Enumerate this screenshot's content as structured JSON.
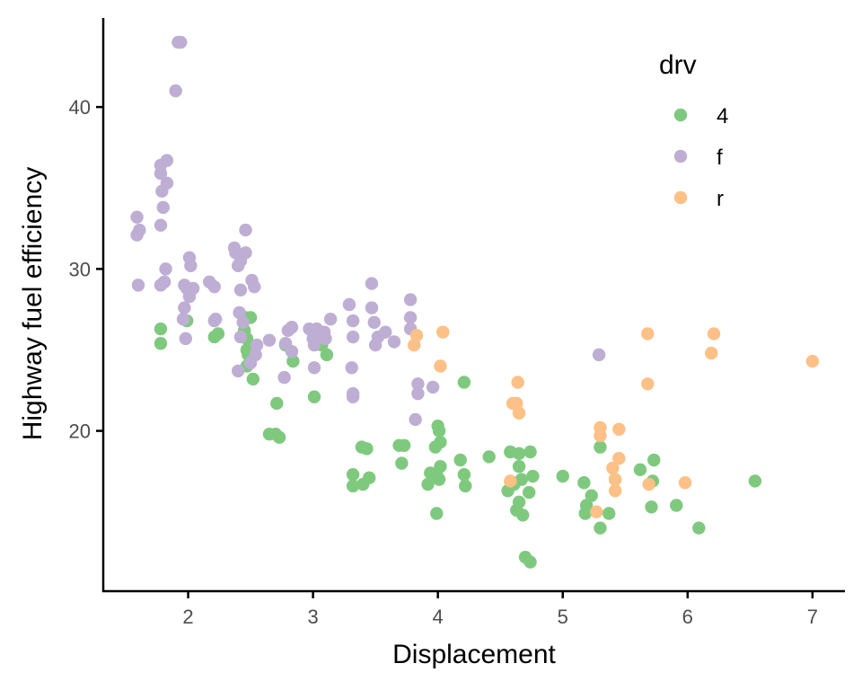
{
  "chart_data": {
    "type": "scatter",
    "title": "",
    "xlabel": "Displacement",
    "ylabel": "Highway fuel efficiency",
    "xlim": [
      1.32,
      7.26
    ],
    "ylim": [
      10.1,
      45.5
    ],
    "x_ticks": [
      2,
      3,
      4,
      5,
      6,
      7
    ],
    "x_tick_labels": [
      "2",
      "3",
      "4",
      "5",
      "6",
      "7"
    ],
    "y_ticks": [
      20,
      30,
      40
    ],
    "y_tick_labels": [
      "20",
      "30",
      "40"
    ],
    "grid": false,
    "legend": {
      "title": "drv",
      "placement": "top-right",
      "entries": [
        "4",
        "f",
        "r"
      ]
    },
    "series": [
      {
        "name": "4",
        "color": "#7fc97f",
        "points": [
          [
            1.78,
            26.3
          ],
          [
            1.78,
            25.4
          ],
          [
            1.99,
            26.8
          ],
          [
            2.21,
            25.8
          ],
          [
            2.24,
            26.0
          ],
          [
            2.46,
            27.0
          ],
          [
            2.5,
            27.0
          ],
          [
            2.45,
            26.2
          ],
          [
            2.47,
            25.7
          ],
          [
            2.47,
            25.0
          ],
          [
            2.48,
            24.7
          ],
          [
            2.47,
            24.0
          ],
          [
            2.52,
            23.2
          ],
          [
            2.71,
            21.7
          ],
          [
            2.65,
            19.8
          ],
          [
            2.7,
            19.8
          ],
          [
            2.73,
            19.6
          ],
          [
            2.78,
            25.3
          ],
          [
            2.84,
            24.3
          ],
          [
            3.01,
            22.1
          ],
          [
            3.07,
            25.3
          ],
          [
            3.11,
            24.7
          ],
          [
            3.39,
            19.0
          ],
          [
            3.43,
            18.9
          ],
          [
            3.32,
            17.3
          ],
          [
            3.32,
            16.6
          ],
          [
            3.4,
            16.7
          ],
          [
            3.45,
            17.1
          ],
          [
            3.69,
            19.1
          ],
          [
            3.73,
            19.1
          ],
          [
            3.71,
            18.0
          ],
          [
            4.0,
            20.3
          ],
          [
            4.01,
            20.0
          ],
          [
            4.02,
            19.3
          ],
          [
            3.98,
            19.0
          ],
          [
            3.92,
            16.7
          ],
          [
            3.94,
            17.4
          ],
          [
            3.99,
            17.3
          ],
          [
            4.02,
            17.8
          ],
          [
            4.01,
            17.0
          ],
          [
            3.99,
            14.9
          ],
          [
            4.18,
            18.2
          ],
          [
            4.21,
            17.3
          ],
          [
            4.22,
            16.6
          ],
          [
            4.21,
            23.0
          ],
          [
            4.41,
            18.4
          ],
          [
            4.58,
            18.7
          ],
          [
            4.65,
            18.6
          ],
          [
            4.74,
            18.7
          ],
          [
            4.56,
            16.3
          ],
          [
            4.6,
            16.8
          ],
          [
            4.67,
            17.0
          ],
          [
            4.76,
            17.2
          ],
          [
            4.65,
            17.8
          ],
          [
            4.73,
            16.2
          ],
          [
            4.65,
            15.6
          ],
          [
            4.63,
            15.1
          ],
          [
            4.68,
            14.8
          ],
          [
            4.61,
            16.7
          ],
          [
            4.7,
            12.2
          ],
          [
            4.74,
            11.9
          ],
          [
            5.0,
            17.2
          ],
          [
            5.17,
            16.8
          ],
          [
            5.23,
            16.0
          ],
          [
            5.19,
            15.4
          ],
          [
            5.18,
            14.9
          ],
          [
            5.37,
            14.9
          ],
          [
            5.3,
            19.0
          ],
          [
            5.3,
            14.0
          ],
          [
            5.42,
            17.0
          ],
          [
            5.62,
            17.6
          ],
          [
            5.73,
            18.2
          ],
          [
            5.71,
            15.3
          ],
          [
            5.72,
            16.9
          ],
          [
            5.91,
            15.4
          ],
          [
            6.09,
            14.0
          ],
          [
            6.54,
            16.9
          ]
        ]
      },
      {
        "name": "f",
        "color": "#beaed4",
        "points": [
          [
            1.92,
            44.0
          ],
          [
            1.94,
            44.0
          ],
          [
            1.9,
            41.0
          ],
          [
            1.83,
            36.7
          ],
          [
            1.78,
            36.4
          ],
          [
            1.78,
            35.9
          ],
          [
            1.83,
            35.3
          ],
          [
            1.79,
            34.8
          ],
          [
            1.8,
            33.8
          ],
          [
            1.78,
            32.7
          ],
          [
            1.59,
            33.2
          ],
          [
            1.61,
            32.4
          ],
          [
            1.59,
            32.1
          ],
          [
            1.6,
            29.0
          ],
          [
            1.82,
            30.0
          ],
          [
            1.78,
            29.0
          ],
          [
            1.81,
            29.2
          ],
          [
            2.01,
            30.7
          ],
          [
            2.02,
            30.2
          ],
          [
            1.97,
            29.0
          ],
          [
            1.99,
            28.8
          ],
          [
            2.01,
            28.3
          ],
          [
            1.97,
            27.6
          ],
          [
            1.96,
            26.9
          ],
          [
            1.98,
            25.7
          ],
          [
            2.04,
            28.8
          ],
          [
            2.17,
            29.2
          ],
          [
            2.21,
            28.9
          ],
          [
            2.22,
            26.9
          ],
          [
            2.21,
            26.8
          ],
          [
            2.46,
            32.4
          ],
          [
            2.37,
            31.3
          ],
          [
            2.38,
            31.0
          ],
          [
            2.4,
            30.2
          ],
          [
            2.46,
            31.0
          ],
          [
            2.42,
            30.5
          ],
          [
            2.51,
            29.3
          ],
          [
            2.53,
            28.9
          ],
          [
            2.42,
            28.7
          ],
          [
            2.41,
            27.3
          ],
          [
            2.44,
            26.7
          ],
          [
            2.42,
            25.8
          ],
          [
            2.4,
            23.7
          ],
          [
            2.5,
            24.2
          ],
          [
            2.55,
            25.3
          ],
          [
            2.54,
            24.7
          ],
          [
            2.65,
            25.6
          ],
          [
            2.78,
            25.4
          ],
          [
            2.8,
            26.2
          ],
          [
            2.77,
            23.3
          ],
          [
            2.83,
            24.9
          ],
          [
            2.83,
            26.4
          ],
          [
            2.97,
            26.3
          ],
          [
            3.03,
            26.3
          ],
          [
            3.09,
            26.1
          ],
          [
            3.1,
            25.7
          ],
          [
            3.14,
            26.9
          ],
          [
            3.01,
            25.3
          ],
          [
            3.0,
            25.7
          ],
          [
            3.07,
            26.0
          ],
          [
            3.01,
            23.9
          ],
          [
            3.29,
            27.8
          ],
          [
            3.32,
            26.8
          ],
          [
            3.32,
            25.8
          ],
          [
            3.31,
            23.9
          ],
          [
            3.32,
            22.3
          ],
          [
            3.32,
            22.1
          ],
          [
            3.47,
            29.1
          ],
          [
            3.47,
            27.6
          ],
          [
            3.49,
            26.7
          ],
          [
            3.5,
            25.3
          ],
          [
            3.52,
            25.8
          ],
          [
            3.58,
            26.1
          ],
          [
            3.65,
            25.5
          ],
          [
            3.78,
            28.1
          ],
          [
            3.78,
            27.0
          ],
          [
            3.78,
            26.3
          ],
          [
            3.84,
            22.9
          ],
          [
            3.84,
            22.3
          ],
          [
            3.96,
            22.7
          ],
          [
            3.82,
            20.7
          ],
          [
            5.29,
            24.7
          ]
        ]
      },
      {
        "name": "r",
        "color": "#fdc086",
        "points": [
          [
            3.83,
            25.9
          ],
          [
            3.81,
            25.3
          ],
          [
            4.04,
            26.1
          ],
          [
            4.02,
            24.0
          ],
          [
            4.64,
            23.0
          ],
          [
            4.63,
            21.7
          ],
          [
            4.6,
            21.7
          ],
          [
            4.65,
            21.1
          ],
          [
            5.3,
            20.2
          ],
          [
            5.3,
            19.7
          ],
          [
            5.45,
            20.1
          ],
          [
            5.45,
            18.3
          ],
          [
            5.4,
            17.7
          ],
          [
            5.42,
            17.0
          ],
          [
            5.42,
            16.3
          ],
          [
            5.27,
            15.0
          ],
          [
            5.68,
            26.0
          ],
          [
            5.68,
            22.9
          ],
          [
            5.69,
            16.7
          ],
          [
            5.98,
            16.8
          ],
          [
            6.21,
            26.0
          ],
          [
            6.19,
            24.8
          ],
          [
            7.0,
            24.3
          ],
          [
            4.58,
            16.9
          ]
        ]
      }
    ]
  }
}
